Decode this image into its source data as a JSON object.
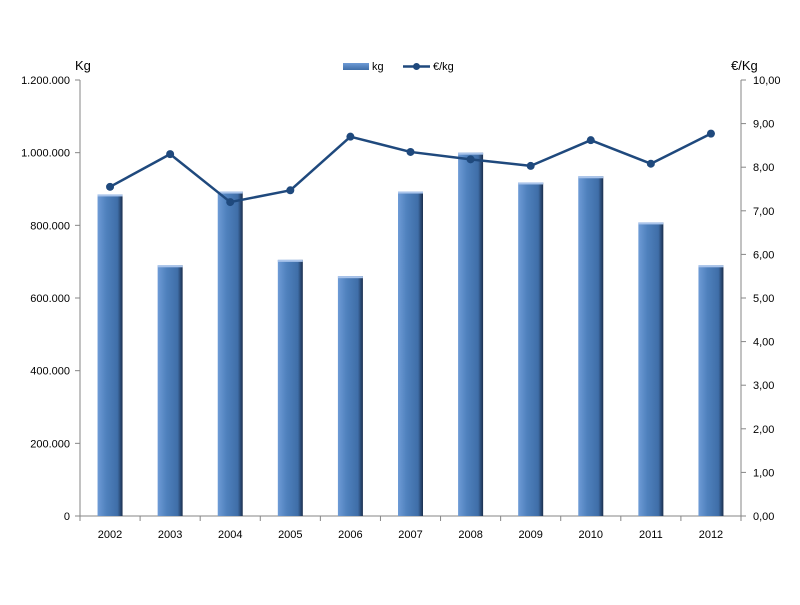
{
  "chart_data": {
    "type": "bar+line",
    "categories": [
      "2002",
      "2003",
      "2004",
      "2005",
      "2006",
      "2007",
      "2008",
      "2009",
      "2010",
      "2011",
      "2012"
    ],
    "series": [
      {
        "name": "kg",
        "type": "bar",
        "axis": "left",
        "values": [
          885000,
          690000,
          893000,
          705000,
          660000,
          893000,
          1000000,
          918000,
          935000,
          808000,
          690000
        ]
      },
      {
        "name": "€/kg",
        "type": "line",
        "axis": "right",
        "values": [
          7.55,
          8.3,
          7.2,
          7.47,
          8.7,
          8.35,
          8.18,
          8.03,
          8.62,
          8.08,
          8.77
        ]
      }
    ],
    "y_left": {
      "label": "Kg",
      "lim": [
        0,
        1200000
      ],
      "ticks": [
        "0",
        "200.000",
        "400.000",
        "600.000",
        "800.000",
        "1.000.000",
        "1.200.000"
      ]
    },
    "y_right": {
      "label": "€/Kg",
      "lim": [
        0,
        10
      ],
      "ticks": [
        "0,00",
        "1,00",
        "2,00",
        "3,00",
        "4,00",
        "5,00",
        "6,00",
        "7,00",
        "8,00",
        "9,00",
        "10,00"
      ]
    },
    "legend_position": "top-center",
    "grid": false,
    "colors": {
      "bar": "#4F81BD",
      "line": "#1F497D"
    }
  }
}
